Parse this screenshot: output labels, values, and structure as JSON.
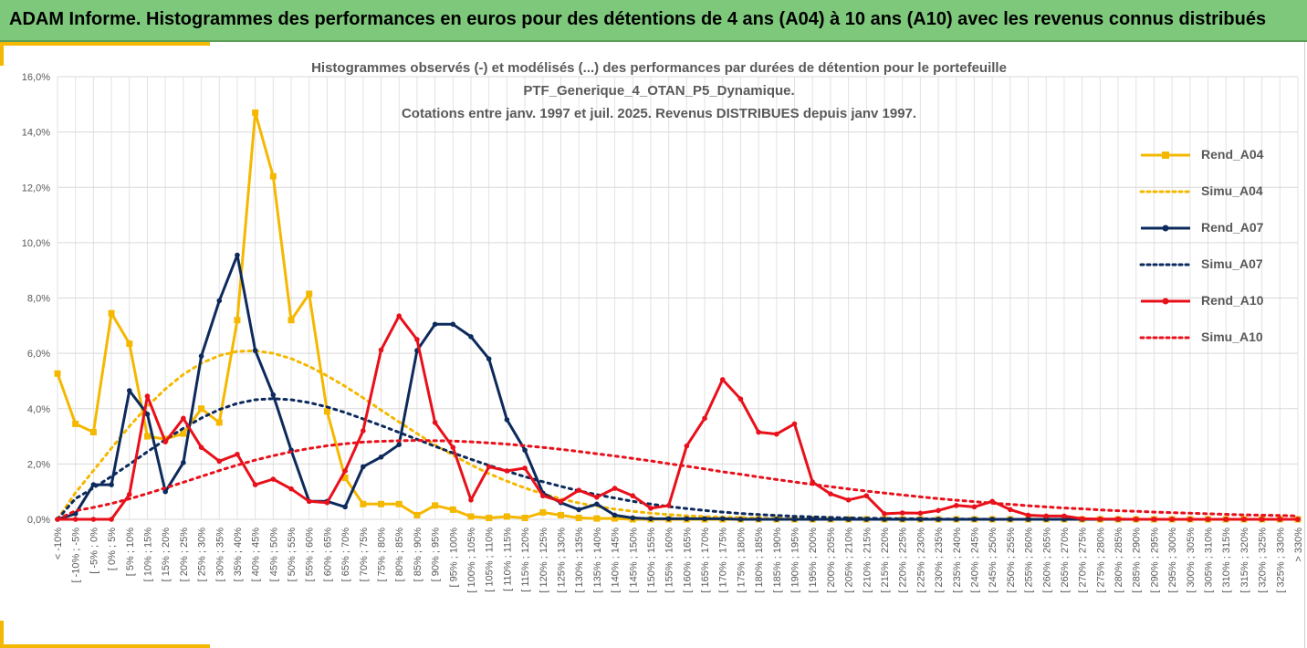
{
  "header": {
    "title": "ADAM Informe. Histogrammes des performances en euros pour des détentions de 4 ans (A04) à 10 ans (A10) avec les revenus connus distribués"
  },
  "colors": {
    "banner": "#7ec87c",
    "accent": "#f5b800",
    "A04": "#f5b800",
    "A07": "#0d2a5c",
    "A10": "#e8101a",
    "grid": "#d9d9d9",
    "text": "#595959"
  },
  "chart_data": {
    "type": "line",
    "title_lines": [
      "Histogrammes observés (-) et modélisés (...) des performances par durées de détention pour le portefeuille",
      "PTF_Generique_4_OTAN_P5_Dynamique.",
      "Cotations entre janv. 1997 et juil. 2025. Revenus DISTRIBUES depuis janv 1997."
    ],
    "xlabel": "",
    "ylabel": "",
    "ylim": [
      0,
      0.16
    ],
    "y_ticks": [
      "0,0%",
      "2,0%",
      "4,0%",
      "6,0%",
      "8,0%",
      "10,0%",
      "12,0%",
      "14,0%",
      "16,0%"
    ],
    "grid": true,
    "legend_position": "right",
    "categories": [
      "< -10%",
      "[ -10% ; -5%",
      "[ -5% ; 0%",
      "[ 0% ; 5%",
      "[ 5% ; 10%",
      "[ 10% ; 15%",
      "[ 15% ; 20%",
      "[ 20% ; 25%",
      "[ 25% ; 30%",
      "[ 30% ; 35%",
      "[ 35% ; 40%",
      "[ 40% ; 45%",
      "[ 45% ; 50%",
      "[ 50% ; 55%",
      "[ 55% ; 60%",
      "[ 60% ; 65%",
      "[ 65% ; 70%",
      "[ 70% ; 75%",
      "[ 75% ; 80%",
      "[ 80% ; 85%",
      "[ 85% ; 90%",
      "[ 90% ; 95%",
      "[ 95% ; 100%",
      "[ 100% ; 105%",
      "[ 105% ; 110%",
      "[ 110% ; 115%",
      "[ 115% ; 120%",
      "[ 120% ; 125%",
      "[ 125% ; 130%",
      "[ 130% ; 135%",
      "[ 135% ; 140%",
      "[ 140% ; 145%",
      "[ 145% ; 150%",
      "[ 150% ; 155%",
      "[ 155% ; 160%",
      "[ 160% ; 165%",
      "[ 165% ; 170%",
      "[ 170% ; 175%",
      "[ 175% ; 180%",
      "[ 180% ; 185%",
      "[ 185% ; 190%",
      "[ 190% ; 195%",
      "[ 195% ; 200%",
      "[ 200% ; 205%",
      "[ 205% ; 210%",
      "[ 210% ; 215%",
      "[ 215% ; 220%",
      "[ 220% ; 225%",
      "[ 225% ; 230%",
      "[ 230% ; 235%",
      "[ 235% ; 240%",
      "[ 240% ; 245%",
      "[ 245% ; 250%",
      "[ 250% ; 255%",
      "[ 255% ; 260%",
      "[ 260% ; 265%",
      "[ 265% ; 270%",
      "[ 270% ; 275%",
      "[ 275% ; 280%",
      "[ 280% ; 285%",
      "[ 285% ; 290%",
      "[ 290% ; 295%",
      "[ 295% ; 300%",
      "[ 300% ; 305%",
      "[ 305% ; 310%",
      "[ 310% ; 315%",
      "[ 315% ; 320%",
      "[ 320% ; 325%",
      "[ 325% ; 330%",
      "> 330%"
    ],
    "series": [
      {
        "name": "Rend_A04",
        "style": "solid-square",
        "color": "#f5b800",
        "values": [
          0.0527,
          0.0345,
          0.0315,
          0.0745,
          0.0635,
          0.03,
          0.029,
          0.031,
          0.04,
          0.035,
          0.072,
          0.147,
          0.124,
          0.072,
          0.0815,
          0.039,
          0.015,
          0.0055,
          0.0055,
          0.0055,
          0.0015,
          0.005,
          0.0035,
          0.001,
          0.0005,
          0.001,
          0.0005,
          0.0025,
          0.0015,
          0.0005,
          0.0003,
          0.0003,
          0,
          0,
          0,
          0,
          0,
          0,
          0,
          0,
          0,
          0,
          0,
          0,
          0,
          0,
          0,
          0,
          0,
          0,
          0,
          0,
          0,
          0,
          0,
          0,
          0,
          0,
          0,
          0,
          0,
          0,
          0,
          0,
          0,
          0,
          0,
          0,
          0,
          0
        ]
      },
      {
        "name": "Simu_A04",
        "style": "dotted",
        "color": "#f5b800",
        "values": [
          0,
          0.0096,
          0.0176,
          0.0257,
          0.0336,
          0.0408,
          0.0471,
          0.0524,
          0.0564,
          0.0592,
          0.0607,
          0.0609,
          0.06,
          0.0581,
          0.0553,
          0.0519,
          0.0481,
          0.0439,
          0.0395,
          0.0352,
          0.031,
          0.0269,
          0.0232,
          0.0197,
          0.0165,
          0.0138,
          0.0113,
          0.0092,
          0.0074,
          0.0059,
          0.0047,
          0.0037,
          0.0029,
          0.0022,
          0.0017,
          0.0013,
          0.001,
          0.0008,
          0.0006,
          0.0004,
          0.0003,
          0.0002,
          0.0002,
          0.0001,
          0.0001,
          0.0001,
          0,
          0,
          0,
          0,
          0,
          0,
          0,
          0,
          0,
          0,
          0,
          0,
          0,
          0,
          0,
          0,
          0,
          0,
          0,
          0,
          0,
          0,
          0,
          0
        ]
      },
      {
        "name": "Rend_A07",
        "style": "solid-circle",
        "color": "#0d2a5c",
        "values": [
          0,
          0.002,
          0.0125,
          0.0125,
          0.0465,
          0.038,
          0.01,
          0.0205,
          0.059,
          0.079,
          0.0955,
          0.061,
          0.045,
          0.025,
          0.0065,
          0.0065,
          0.0045,
          0.019,
          0.0225,
          0.027,
          0.061,
          0.0705,
          0.0705,
          0.066,
          0.058,
          0.036,
          0.025,
          0.0095,
          0.006,
          0.0035,
          0.0055,
          0.0015,
          0.0005,
          0.0002,
          0.0002,
          0.0002,
          0.0002,
          0.0002,
          0,
          0,
          0,
          0,
          0,
          0,
          0,
          0,
          0,
          0,
          0,
          0,
          0,
          0,
          0,
          0,
          0,
          0,
          0,
          0,
          0,
          0,
          0,
          0,
          0,
          0,
          0,
          0,
          0,
          0,
          0,
          0
        ]
      },
      {
        "name": "Simu_A07",
        "style": "dotted",
        "color": "#0d2a5c",
        "values": [
          0,
          0.0075,
          0.0113,
          0.0155,
          0.0199,
          0.0244,
          0.0288,
          0.0329,
          0.0366,
          0.0397,
          0.0419,
          0.0432,
          0.0436,
          0.0432,
          0.0422,
          0.0406,
          0.0386,
          0.0363,
          0.0339,
          0.0314,
          0.0289,
          0.0264,
          0.024,
          0.0217,
          0.0195,
          0.0174,
          0.0154,
          0.0136,
          0.0119,
          0.0103,
          0.0089,
          0.0077,
          0.0065,
          0.0055,
          0.0046,
          0.0039,
          0.0032,
          0.0026,
          0.0021,
          0.0017,
          0.0014,
          0.0011,
          0.0009,
          0.0007,
          0.0005,
          0.0004,
          0.0003,
          0.0002,
          0.0002,
          0.0001,
          0.0001,
          0.0001,
          0,
          0,
          0,
          0,
          0,
          0,
          0,
          0,
          0,
          0,
          0,
          0,
          0,
          0,
          0,
          0,
          0,
          0
        ]
      },
      {
        "name": "Rend_A10",
        "style": "solid-circle",
        "color": "#e8101a",
        "values": [
          0,
          0,
          0,
          0,
          0.009,
          0.0445,
          0.028,
          0.0365,
          0.026,
          0.021,
          0.0235,
          0.0125,
          0.0145,
          0.011,
          0.0065,
          0.006,
          0.0175,
          0.032,
          0.0612,
          0.0735,
          0.065,
          0.035,
          0.026,
          0.007,
          0.019,
          0.0175,
          0.0185,
          0.0085,
          0.0065,
          0.0105,
          0.008,
          0.0112,
          0.0085,
          0.004,
          0.005,
          0.0265,
          0.0365,
          0.0505,
          0.0435,
          0.0315,
          0.0308,
          0.0345,
          0.0135,
          0.0092,
          0.007,
          0.0085,
          0.002,
          0.0023,
          0.0022,
          0.0032,
          0.005,
          0.0045,
          0.0065,
          0.0035,
          0.0015,
          0.0012,
          0.0012,
          0.0002,
          0.0001,
          0.0001,
          0,
          0,
          0,
          0,
          0,
          0,
          0,
          0,
          0,
          0
        ]
      },
      {
        "name": "Simu_A10",
        "style": "dotted",
        "color": "#e8101a",
        "values": [
          0,
          0.0031,
          0.0043,
          0.0057,
          0.0074,
          0.0093,
          0.0113,
          0.0134,
          0.0155,
          0.0176,
          0.0196,
          0.0214,
          0.023,
          0.0244,
          0.0256,
          0.0266,
          0.0273,
          0.0279,
          0.0282,
          0.0284,
          0.0285,
          0.0284,
          0.0283,
          0.028,
          0.0276,
          0.0272,
          0.0266,
          0.026,
          0.0253,
          0.0245,
          0.0237,
          0.0229,
          0.022,
          0.0211,
          0.0201,
          0.0192,
          0.0182,
          0.0172,
          0.0163,
          0.0153,
          0.0144,
          0.0135,
          0.0126,
          0.0118,
          0.011,
          0.0102,
          0.0095,
          0.0088,
          0.0081,
          0.0075,
          0.0069,
          0.0064,
          0.0058,
          0.0054,
          0.0049,
          0.0045,
          0.0041,
          0.0038,
          0.0034,
          0.0031,
          0.0029,
          0.0026,
          0.0024,
          0.0022,
          0.002,
          0.0018,
          0.0016,
          0.0015,
          0.0014,
          0.0012
        ]
      }
    ]
  }
}
